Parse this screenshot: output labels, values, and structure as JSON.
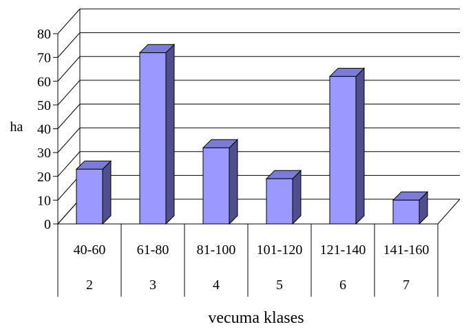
{
  "chart_data": {
    "type": "bar",
    "style": "3d-column",
    "categories": [
      "40-60",
      "61-80",
      "81-100",
      "101-120",
      "121-140",
      "141-160"
    ],
    "category_codes": [
      "2",
      "3",
      "4",
      "5",
      "6",
      "7"
    ],
    "values": [
      23,
      72,
      32,
      19,
      62,
      10
    ],
    "ylabel": "ha",
    "xlabel": "vecuma klases",
    "ylim": [
      0,
      80
    ],
    "yticks": [
      0,
      10,
      20,
      30,
      40,
      50,
      60,
      70,
      80
    ],
    "grid": true,
    "colors": {
      "bar_front": "#9999ff",
      "bar_side": "#4f4f8e",
      "bar_top": "#7c7cd6",
      "grid": "#000000"
    }
  }
}
